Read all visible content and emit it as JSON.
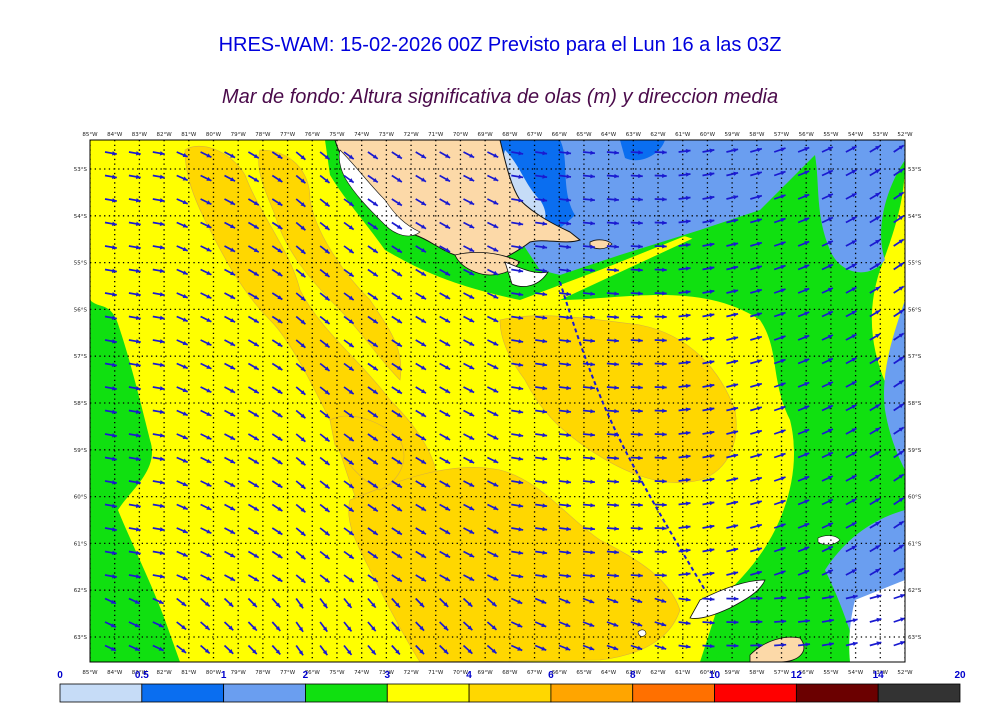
{
  "title": "HRES-WAM: 15-02-2026 00Z Previsto para el Lun 16 a las 03Z",
  "subtitle": "Mar de fondo: Altura significativa de olas (m) y direccion media",
  "lon_labels": [
    "85°W",
    "84°W",
    "83°W",
    "82°W",
    "81°W",
    "80°W",
    "79°W",
    "78°W",
    "77°W",
    "76°W",
    "75°W",
    "74°W",
    "73°W",
    "72°W",
    "71°W",
    "70°W",
    "69°W",
    "68°W",
    "67°W",
    "66°W",
    "65°W",
    "64°W",
    "63°W",
    "62°W",
    "61°W",
    "60°W",
    "59°W",
    "58°W",
    "57°W",
    "56°W",
    "55°W",
    "54°W",
    "53°W",
    "52°W"
  ],
  "lat_labels": [
    "53°S",
    "54°S",
    "55°S",
    "56°S",
    "57°S",
    "58°S",
    "59°S",
    "60°S",
    "61°S",
    "62°S",
    "63°S"
  ],
  "legend": {
    "labels": [
      "0",
      "0.5",
      "1",
      "2",
      "3",
      "4",
      "6",
      "8",
      "10",
      "12",
      "14",
      "20"
    ],
    "colors": [
      "#c6dcf7",
      "#0a6ef0",
      "#6a9ef0",
      "#10e010",
      "#ffff00",
      "#ffd700",
      "#ffa500",
      "#ff7000",
      "#ff0000",
      "#6b0000",
      "#333333"
    ]
  },
  "colors": {
    "land": "#fcd9a8",
    "coast": "#111111",
    "arrow": "#1a1ad0",
    "track": "#1a1ad0",
    "grid": "#000000"
  }
}
